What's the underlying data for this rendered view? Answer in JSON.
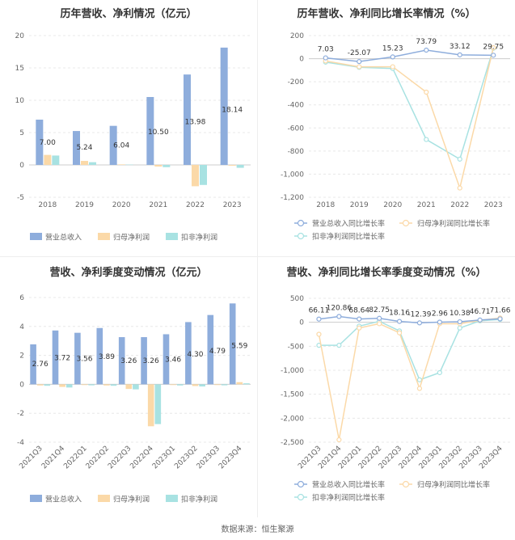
{
  "chart_data": [
    {
      "id": "annual_revenue_profit",
      "type": "bar",
      "title": "历年营收、净利情况（亿元）",
      "categories": [
        "2018",
        "2019",
        "2020",
        "2021",
        "2022",
        "2023"
      ],
      "ylim": [
        -5,
        20
      ],
      "yticks": [
        -5,
        0,
        5,
        10,
        15,
        20
      ],
      "series": [
        {
          "name": "营业总收入",
          "color": "#8eaddc",
          "values": [
            7.0,
            5.24,
            6.04,
            10.5,
            13.98,
            18.14
          ],
          "labels": [
            "7.00",
            "5.24",
            "6.04",
            "10.50",
            "13.98",
            "18.14"
          ]
        },
        {
          "name": "归母净利润",
          "color": "#fbd9a8",
          "values": [
            1.55,
            0.62,
            0.08,
            -0.25,
            -3.3,
            -0.12
          ]
        },
        {
          "name": "扣非净利润",
          "color": "#a8e2e2",
          "values": [
            1.45,
            0.42,
            0.05,
            -0.35,
            -3.1,
            -0.45
          ]
        }
      ],
      "grid": true,
      "legend": "bottom"
    },
    {
      "id": "annual_growth_rate",
      "type": "line",
      "title": "历年营收、净利同比增长率情况（%）",
      "categories": [
        "2018",
        "2019",
        "2020",
        "2021",
        "2022",
        "2023"
      ],
      "ylim": [
        -1200,
        200
      ],
      "yticks": [
        -1200,
        -1000,
        -800,
        -600,
        -400,
        -200,
        0,
        200
      ],
      "series": [
        {
          "name": "营业总收入同比增长率",
          "color": "#8eaddc",
          "values": [
            7.03,
            -25.07,
            15.23,
            73.79,
            33.12,
            29.75
          ],
          "labels": [
            "7.03",
            "-25.07",
            "15.23",
            "73.79",
            "33.12",
            "29.75"
          ]
        },
        {
          "name": "归母净利润同比增长率",
          "color": "#fbd9a8",
          "values": [
            -20,
            -70,
            -70,
            -290,
            -1120,
            95
          ]
        },
        {
          "name": "扣非净利润同比增长率",
          "color": "#a8e2e2",
          "values": [
            -30,
            -75,
            -85,
            -700,
            -870,
            90
          ]
        }
      ],
      "grid": true,
      "legend": "bottom"
    },
    {
      "id": "quarterly_revenue_profit",
      "type": "bar",
      "title": "营收、净利季度变动情况（亿元）",
      "categories": [
        "2021Q3",
        "2021Q4",
        "2022Q1",
        "2022Q2",
        "2022Q3",
        "2022Q4",
        "2023Q1",
        "2023Q2",
        "2023Q3",
        "2023Q4"
      ],
      "ylim": [
        -4,
        6
      ],
      "yticks": [
        -4,
        -2,
        0,
        2,
        4,
        6
      ],
      "series": [
        {
          "name": "营业总收入",
          "color": "#8eaddc",
          "values": [
            2.76,
            3.72,
            3.56,
            3.89,
            3.26,
            3.26,
            3.46,
            4.3,
            4.79,
            5.59
          ],
          "labels": [
            "2.76",
            "3.72",
            "3.56",
            "3.89",
            "3.26",
            "3.26",
            "3.46",
            "4.30",
            "4.79",
            "5.59"
          ]
        },
        {
          "name": "归母净利润",
          "color": "#fbd9a8",
          "values": [
            -0.08,
            -0.18,
            -0.05,
            -0.08,
            -0.32,
            -2.9,
            -0.05,
            -0.12,
            -0.05,
            0.15
          ]
        },
        {
          "name": "扣非净利润",
          "color": "#a8e2e2",
          "values": [
            -0.1,
            -0.22,
            -0.07,
            -0.1,
            -0.35,
            -2.75,
            -0.08,
            -0.15,
            -0.07,
            0.07
          ]
        }
      ],
      "grid": true,
      "legend": "bottom"
    },
    {
      "id": "quarterly_growth_rate",
      "type": "line",
      "title": "营收、净利同比增长率季度变动情况（%）",
      "categories": [
        "2021Q3",
        "2021Q4",
        "2022Q1",
        "2022Q2",
        "2022Q3",
        "2022Q4",
        "2023Q1",
        "2023Q2",
        "2023Q3",
        "2023Q4"
      ],
      "ylim": [
        -2500,
        500
      ],
      "yticks": [
        -2500,
        -2000,
        -1500,
        -1000,
        -500,
        0,
        500
      ],
      "series": [
        {
          "name": "营业总收入同比增长率",
          "color": "#8eaddc",
          "values": [
            66.11,
            120.86,
            68.64,
            82.75,
            18.16,
            -12.39,
            2.96,
            10.38,
            46.71,
            71.66
          ],
          "labels": [
            "66.11",
            "120.86",
            "68.64",
            "82.75",
            "18.16",
            "-12.39",
            "2.96",
            "10.38",
            "46.71",
            "71.66"
          ]
        },
        {
          "name": "归母净利润同比增长率",
          "color": "#fbd9a8",
          "values": [
            -250,
            -2450,
            -120,
            -30,
            -220,
            -1380,
            -30,
            -30,
            40,
            90
          ]
        },
        {
          "name": "扣非净利润同比增长率",
          "color": "#a8e2e2",
          "values": [
            -480,
            -480,
            -80,
            20,
            -180,
            -1200,
            -1050,
            -120,
            30,
            60
          ]
        }
      ],
      "grid": true,
      "legend": "bottom"
    }
  ],
  "source": "数据来源：恒生聚源"
}
